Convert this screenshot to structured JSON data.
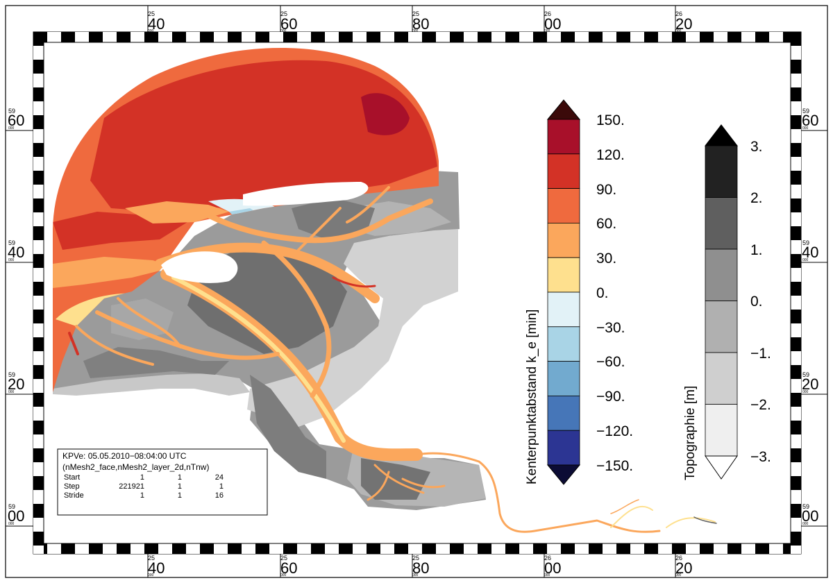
{
  "map": {
    "frame": {
      "x_ticks": [
        {
          "sup": "25",
          "main": "40",
          "sub": "000"
        },
        {
          "sup": "25",
          "main": "60",
          "sub": "000"
        },
        {
          "sup": "25",
          "main": "80",
          "sub": "000"
        },
        {
          "sup": "26",
          "main": "00",
          "sub": "000"
        },
        {
          "sup": "26",
          "main": "20",
          "sub": "000"
        }
      ],
      "y_ticks": [
        {
          "sup": "59",
          "main": "60",
          "sub": "000"
        },
        {
          "sup": "59",
          "main": "40",
          "sub": "000"
        },
        {
          "sup": "59",
          "main": "20",
          "sub": "000"
        },
        {
          "sup": "59",
          "main": "00",
          "sub": "000"
        }
      ]
    },
    "colorbar_kenter": {
      "title": "Kenterpunktabstand k_e [min]",
      "labels": [
        "150.",
        "120.",
        "90.",
        "60.",
        "30.",
        "0.",
        "−30.",
        "−60.",
        "−90.",
        "−120.",
        "−150."
      ],
      "colors": [
        "#3b0a0a",
        "#a8102a",
        "#d33226",
        "#ef6a3e",
        "#fba75c",
        "#fee08e",
        "#e2f2f7",
        "#a9d4e6",
        "#72aacf",
        "#4676b8",
        "#2c3593",
        "#0c0c35"
      ]
    },
    "colorbar_topo": {
      "title": "Topographie [m]",
      "labels": [
        "3.",
        "2.",
        "1.",
        "0.",
        "−1.",
        "−2.",
        "−3."
      ],
      "colors": [
        "#000000",
        "#222222",
        "#5f5f5f",
        "#8f8f8f",
        "#b0b0b0",
        "#cfcfcf",
        "#efefef",
        "#ffffff"
      ]
    },
    "info_box": {
      "line1": "KPVe: 05.05.2010−08:04:00 UTC",
      "line2": "(nMesh2_face,nMesh2_layer_2d,nTnw)",
      "rows": [
        {
          "label": "Start",
          "a": "1",
          "b": "1",
          "c": "24"
        },
        {
          "label": "Step",
          "a": "221921",
          "b": "1",
          "c": "1"
        },
        {
          "label": "Stride",
          "a": "1",
          "b": "1",
          "c": "16"
        }
      ]
    }
  }
}
